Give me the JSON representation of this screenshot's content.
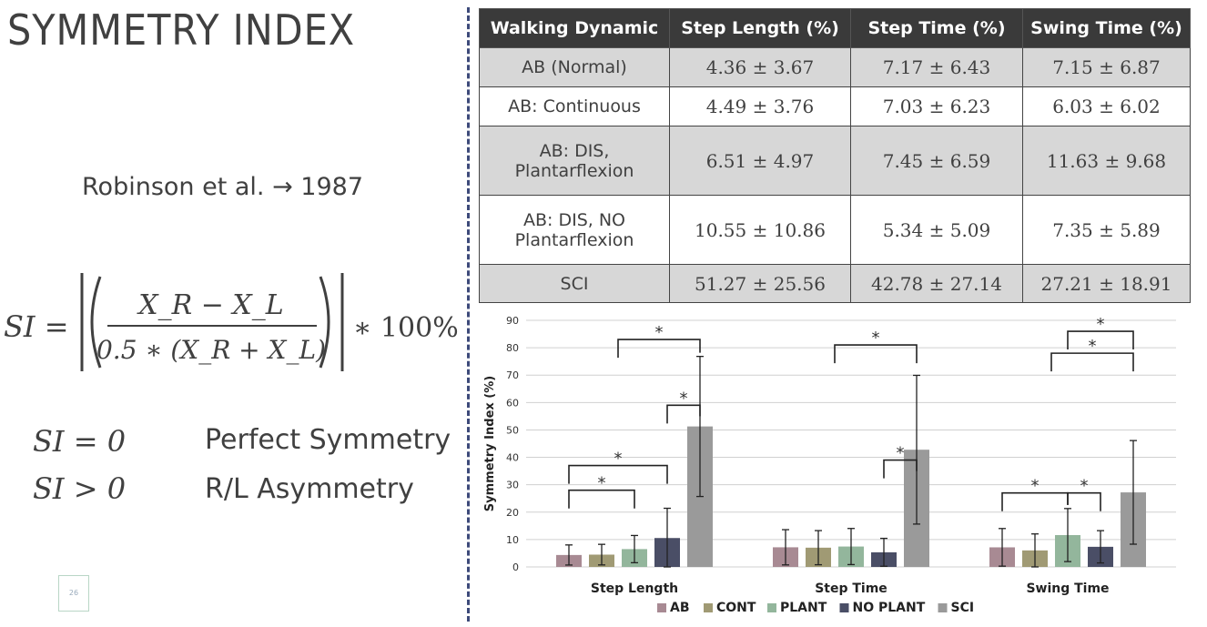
{
  "slide": {
    "title": "SYMMETRY INDEX",
    "citation": "Robinson et al. → 1987",
    "formula": {
      "lhs": "SI =",
      "numerator": "X_R − X_L",
      "denominator": "0.5 ∗ (X_R + X_L)",
      "multiplier": "∗ 100%"
    },
    "conditions": [
      {
        "expr": "SI = 0",
        "meaning": "Perfect Symmetry"
      },
      {
        "expr": "SI > 0",
        "meaning": "R/L Asymmetry"
      }
    ],
    "page_number": "26"
  },
  "table": {
    "headers": [
      "Walking Dynamic",
      "Step Length (%)",
      "Step Time (%)",
      "Swing Time (%)"
    ],
    "rows": [
      {
        "label": [
          "AB (Normal)"
        ],
        "values": [
          "4.36 ± 3.67",
          "7.17 ± 6.43",
          "7.15 ± 6.87"
        ]
      },
      {
        "label": [
          "AB: Continuous"
        ],
        "values": [
          "4.49 ± 3.76",
          "7.03 ± 6.23",
          "6.03 ± 6.02"
        ]
      },
      {
        "label": [
          "AB: DIS,",
          "Plantarflexion"
        ],
        "values": [
          "6.51 ± 4.97",
          "7.45 ± 6.59",
          "11.63 ± 9.68"
        ]
      },
      {
        "label": [
          "AB: DIS, NO",
          "Plantarflexion"
        ],
        "values": [
          "10.55 ± 10.86",
          "5.34 ± 5.09",
          "7.35 ± 5.89"
        ]
      },
      {
        "label": [
          "SCI"
        ],
        "values": [
          "51.27 ± 25.56",
          "42.78 ± 27.14",
          "27.21 ± 18.91"
        ]
      }
    ]
  },
  "chart_data": {
    "type": "bar",
    "categories": [
      "Step Length",
      "Step Time",
      "Swing Time"
    ],
    "ylabel": "Symmetry Index (%)",
    "ylim": [
      0,
      90
    ],
    "yticks": [
      0,
      10,
      20,
      30,
      40,
      50,
      60,
      70,
      80,
      90
    ],
    "grid": true,
    "legend_position": "bottom",
    "series": [
      {
        "name": "AB",
        "color": "#a88a93",
        "values": [
          4.36,
          7.17,
          7.15
        ],
        "errors": [
          3.67,
          6.43,
          6.87
        ]
      },
      {
        "name": "CONT",
        "color": "#a09a74",
        "values": [
          4.49,
          7.03,
          6.03
        ],
        "errors": [
          3.76,
          6.23,
          6.02
        ]
      },
      {
        "name": "PLANT",
        "color": "#93b69c",
        "values": [
          6.51,
          7.45,
          11.63
        ],
        "errors": [
          4.97,
          6.59,
          9.68
        ]
      },
      {
        "name": "NO PLANT",
        "color": "#4a4e66",
        "values": [
          10.55,
          5.34,
          7.35
        ],
        "errors": [
          10.86,
          5.09,
          5.89
        ]
      },
      {
        "name": "SCI",
        "color": "#9a9a9a",
        "values": [
          51.27,
          42.78,
          27.21
        ],
        "errors": [
          25.56,
          27.14,
          18.91
        ]
      }
    ],
    "significance_label": "*",
    "significance": [
      {
        "category": 0,
        "a": [
          0
        ],
        "b": [
          2
        ],
        "y": 28
      },
      {
        "category": 0,
        "a": [
          0
        ],
        "b": [
          3
        ],
        "y": 37
      },
      {
        "category": 0,
        "a": [
          3
        ],
        "b": [
          4
        ],
        "y": 59
      },
      {
        "category": 0,
        "a": [
          0,
          3
        ],
        "b": [
          4
        ],
        "y": 83
      },
      {
        "category": 1,
        "a": [
          3
        ],
        "b": [
          4
        ],
        "y": 39
      },
      {
        "category": 1,
        "a": [
          0,
          3
        ],
        "b": [
          4
        ],
        "y": 81
      },
      {
        "category": 2,
        "a": [
          0
        ],
        "b": [
          2
        ],
        "y": 27
      },
      {
        "category": 2,
        "a": [
          2
        ],
        "b": [
          3
        ],
        "y": 27
      },
      {
        "category": 2,
        "a": [
          0,
          3
        ],
        "b": [
          4
        ],
        "y": 78
      },
      {
        "category": 2,
        "a": [
          2
        ],
        "b": [
          4
        ],
        "y": 86
      }
    ]
  }
}
